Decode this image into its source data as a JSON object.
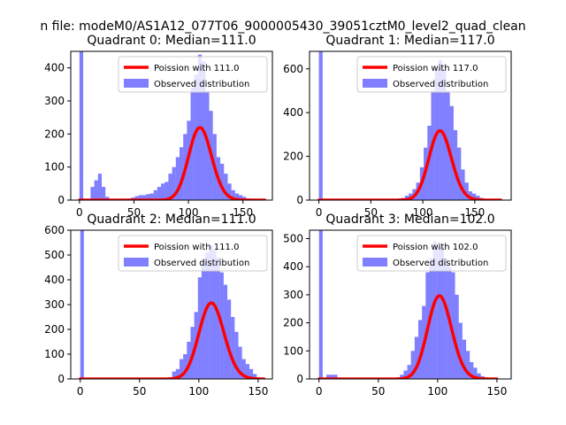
{
  "figure": {
    "suptitle": "n file: modeM0/AS1A12_077T06_9000005430_39051cztM0_level2_quad_clean"
  },
  "colors": {
    "poisson": "#ff0000",
    "observed": "#0000ff",
    "background": "#ffffff"
  },
  "chart_data": [
    {
      "type": "bar",
      "title": "Quadrant 0: Median=111.0",
      "median": 111.0,
      "xlim": [
        -8,
        177
      ],
      "ylim": [
        0,
        450
      ],
      "xticks": [
        0,
        50,
        100,
        150
      ],
      "yticks": [
        0,
        100,
        200,
        300,
        400
      ],
      "bin_width": 3.4,
      "bins": [
        [
          0,
          450
        ],
        [
          3.4,
          0
        ],
        [
          6.8,
          2
        ],
        [
          10.2,
          40
        ],
        [
          13.6,
          60
        ],
        [
          17,
          80
        ],
        [
          20.4,
          40
        ],
        [
          23.8,
          10
        ],
        [
          27.2,
          3
        ],
        [
          30.6,
          2
        ],
        [
          34,
          2
        ],
        [
          37.4,
          2
        ],
        [
          40.8,
          2
        ],
        [
          44.2,
          5
        ],
        [
          47.6,
          8
        ],
        [
          51,
          12
        ],
        [
          54.4,
          15
        ],
        [
          57.8,
          15
        ],
        [
          61.2,
          18
        ],
        [
          64.6,
          20
        ],
        [
          68,
          30
        ],
        [
          71.4,
          40
        ],
        [
          74.8,
          50
        ],
        [
          78.2,
          55
        ],
        [
          81.6,
          80
        ],
        [
          85,
          100
        ],
        [
          88.4,
          130
        ],
        [
          91.8,
          160
        ],
        [
          95.2,
          200
        ],
        [
          98.6,
          240
        ],
        [
          102,
          340
        ],
        [
          105.4,
          380
        ],
        [
          108.8,
          440
        ],
        [
          112.2,
          420
        ],
        [
          115.6,
          330
        ],
        [
          119,
          270
        ],
        [
          122.4,
          200
        ],
        [
          125.8,
          130
        ],
        [
          129.2,
          110
        ],
        [
          132.6,
          80
        ],
        [
          136,
          50
        ],
        [
          139.4,
          30
        ],
        [
          142.8,
          20
        ],
        [
          146.2,
          15
        ],
        [
          149.6,
          10
        ],
        [
          153,
          5
        ],
        [
          156.4,
          3
        ],
        [
          159.8,
          2
        ],
        [
          163.2,
          2
        ]
      ],
      "poisson_lambda": 111.0,
      "poisson_total": 5800,
      "poisson_x": [
        0,
        170
      ],
      "legend": {
        "location": "upper right",
        "entries": [
          {
            "label": "Poission with 111.0",
            "kind": "line"
          },
          {
            "label": "Observed distribution",
            "kind": "patch"
          }
        ]
      }
    },
    {
      "type": "bar",
      "title": "Quadrant 1: Median=117.0",
      "median": 117.0,
      "xlim": [
        -9,
        185
      ],
      "ylim": [
        0,
        680
      ],
      "xticks": [
        0,
        50,
        100,
        150
      ],
      "yticks": [
        0,
        200,
        400,
        600
      ],
      "bin_width": 3.6,
      "bins": [
        [
          0,
          680
        ],
        [
          3.6,
          0
        ],
        [
          7.2,
          0
        ],
        [
          10.8,
          0
        ],
        [
          14.4,
          0
        ],
        [
          18,
          0
        ],
        [
          21.6,
          0
        ],
        [
          25.2,
          0
        ],
        [
          28.8,
          0
        ],
        [
          32.4,
          0
        ],
        [
          36,
          0
        ],
        [
          39.6,
          0
        ],
        [
          43.2,
          0
        ],
        [
          46.8,
          0
        ],
        [
          50.4,
          0
        ],
        [
          54,
          0
        ],
        [
          57.6,
          0
        ],
        [
          61.2,
          2
        ],
        [
          64.8,
          3
        ],
        [
          68.4,
          4
        ],
        [
          72,
          5
        ],
        [
          75.6,
          8
        ],
        [
          79.2,
          10
        ],
        [
          82.8,
          20
        ],
        [
          86.4,
          30
        ],
        [
          90,
          50
        ],
        [
          93.6,
          80
        ],
        [
          97.2,
          150
        ],
        [
          100.8,
          240
        ],
        [
          104.4,
          340
        ],
        [
          108,
          500
        ],
        [
          111.6,
          600
        ],
        [
          115.2,
          640
        ],
        [
          118.8,
          600
        ],
        [
          122.4,
          500
        ],
        [
          126,
          430
        ],
        [
          129.6,
          320
        ],
        [
          133.2,
          240
        ],
        [
          136.8,
          140
        ],
        [
          140.4,
          80
        ],
        [
          144,
          40
        ],
        [
          147.6,
          30
        ],
        [
          151.2,
          20
        ],
        [
          154.8,
          10
        ],
        [
          158.4,
          5
        ],
        [
          162,
          3
        ],
        [
          165.6,
          2
        ],
        [
          169.2,
          1
        ]
      ],
      "poisson_lambda": 117.0,
      "poisson_total": 8600,
      "poisson_x": [
        0,
        175
      ],
      "legend": {
        "location": "upper right",
        "entries": [
          {
            "label": "Poission with 117.0",
            "kind": "line"
          },
          {
            "label": "Observed distribution",
            "kind": "patch"
          }
        ]
      }
    },
    {
      "type": "bar",
      "title": "Quadrant 2: Median=111.0",
      "median": 111.0,
      "xlim": [
        -8,
        162
      ],
      "ylim": [
        0,
        600
      ],
      "xticks": [
        0,
        50,
        100,
        150
      ],
      "yticks": [
        0,
        100,
        200,
        300,
        400,
        500,
        600
      ],
      "bin_width": 3.1,
      "bins": [
        [
          0,
          600
        ],
        [
          3.1,
          0
        ],
        [
          6.2,
          0
        ],
        [
          9.3,
          0
        ],
        [
          12.4,
          0
        ],
        [
          15.5,
          0
        ],
        [
          18.6,
          0
        ],
        [
          21.7,
          0
        ],
        [
          24.8,
          0
        ],
        [
          27.9,
          0
        ],
        [
          31,
          0
        ],
        [
          34.1,
          0
        ],
        [
          37.2,
          0
        ],
        [
          40.3,
          0
        ],
        [
          43.4,
          0
        ],
        [
          46.5,
          0
        ],
        [
          49.6,
          0
        ],
        [
          52.7,
          0
        ],
        [
          55.8,
          0
        ],
        [
          58.9,
          0
        ],
        [
          62,
          0
        ],
        [
          65.1,
          0
        ],
        [
          68.2,
          0
        ],
        [
          71.3,
          2
        ],
        [
          74.4,
          5
        ],
        [
          77.5,
          30
        ],
        [
          80.6,
          40
        ],
        [
          83.7,
          80
        ],
        [
          86.8,
          100
        ],
        [
          89.9,
          150
        ],
        [
          93,
          210
        ],
        [
          96.1,
          270
        ],
        [
          99.2,
          410
        ],
        [
          102.3,
          480
        ],
        [
          105.4,
          510
        ],
        [
          108.5,
          540
        ],
        [
          111.6,
          520
        ],
        [
          114.7,
          490
        ],
        [
          117.8,
          430
        ],
        [
          120.9,
          380
        ],
        [
          124,
          320
        ],
        [
          127.1,
          250
        ],
        [
          130.2,
          190
        ],
        [
          133.3,
          130
        ],
        [
          136.4,
          80
        ],
        [
          139.5,
          60
        ],
        [
          142.6,
          40
        ],
        [
          145.7,
          20
        ],
        [
          148.8,
          5
        ]
      ],
      "poisson_lambda": 111.0,
      "poisson_total": 8100,
      "poisson_x": [
        0,
        155
      ],
      "legend": {
        "location": "upper right",
        "entries": [
          {
            "label": "Poission with 111.0",
            "kind": "line"
          },
          {
            "label": "Observed distribution",
            "kind": "patch"
          }
        ]
      }
    },
    {
      "type": "bar",
      "title": "Quadrant 3: Median=102.0",
      "median": 102.0,
      "xlim": [
        -8,
        162
      ],
      "ylim": [
        0,
        530
      ],
      "xticks": [
        0,
        50,
        100,
        150
      ],
      "yticks": [
        0,
        100,
        200,
        300,
        400,
        500
      ],
      "bin_width": 3.1,
      "bins": [
        [
          0,
          530
        ],
        [
          3.1,
          0
        ],
        [
          6.2,
          15
        ],
        [
          9.3,
          15
        ],
        [
          12.4,
          15
        ],
        [
          15.5,
          5
        ],
        [
          18.6,
          3
        ],
        [
          21.7,
          2
        ],
        [
          24.8,
          2
        ],
        [
          27.9,
          2
        ],
        [
          31,
          1
        ],
        [
          34.1,
          1
        ],
        [
          37.2,
          1
        ],
        [
          40.3,
          1
        ],
        [
          43.4,
          1
        ],
        [
          46.5,
          1
        ],
        [
          49.6,
          1
        ],
        [
          52.7,
          1
        ],
        [
          55.8,
          2
        ],
        [
          58.9,
          2
        ],
        [
          62,
          3
        ],
        [
          65.1,
          5
        ],
        [
          68.2,
          15
        ],
        [
          71.3,
          30
        ],
        [
          74.4,
          50
        ],
        [
          77.5,
          100
        ],
        [
          80.6,
          150
        ],
        [
          83.7,
          210
        ],
        [
          86.8,
          260
        ],
        [
          89.9,
          380
        ],
        [
          93,
          430
        ],
        [
          96.1,
          490
        ],
        [
          99.2,
          480
        ],
        [
          102.3,
          470
        ],
        [
          105.4,
          430
        ],
        [
          108.5,
          400
        ],
        [
          111.6,
          380
        ],
        [
          114.7,
          300
        ],
        [
          117.8,
          200
        ],
        [
          120.9,
          140
        ],
        [
          124,
          100
        ],
        [
          127.1,
          60
        ],
        [
          130.2,
          40
        ],
        [
          133.3,
          20
        ],
        [
          136.4,
          10
        ],
        [
          139.5,
          5
        ],
        [
          142.6,
          3
        ],
        [
          145.7,
          2
        ]
      ],
      "poisson_lambda": 102.0,
      "poisson_total": 7500,
      "poisson_x": [
        0,
        150
      ],
      "legend": {
        "location": "upper right",
        "entries": [
          {
            "label": "Poission with 102.0",
            "kind": "line"
          },
          {
            "label": "Observed distribution",
            "kind": "patch"
          }
        ]
      }
    }
  ]
}
